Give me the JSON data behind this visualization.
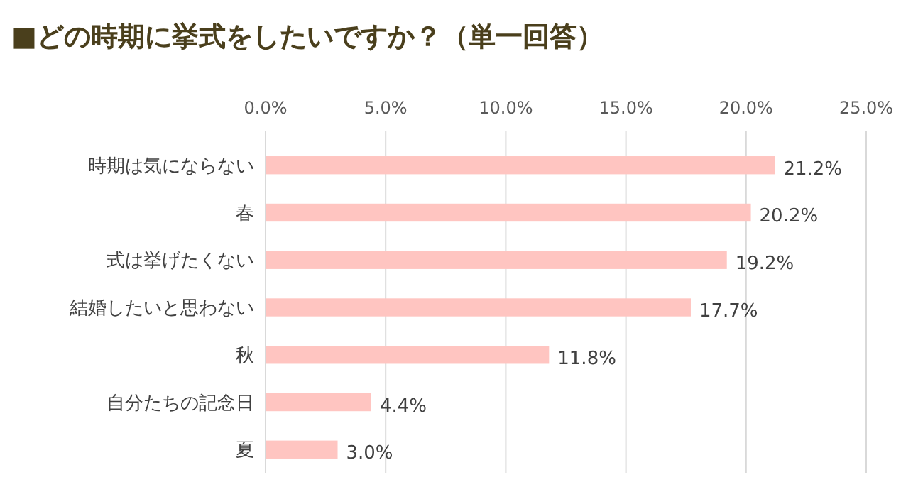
{
  "chart_data": {
    "type": "bar",
    "orientation": "horizontal",
    "title": "■どの時期に挙式をしたいですか？（単一回答）",
    "categories": [
      "時期は気にならない",
      "春",
      "式は挙げたくない",
      "結婚したいと思わない",
      "秋",
      "自分たちの記念日",
      "夏"
    ],
    "values": [
      21.2,
      20.2,
      19.2,
      17.7,
      11.8,
      4.4,
      3.0
    ],
    "value_labels": [
      "21.2%",
      "20.2%",
      "19.2%",
      "17.7%",
      "11.8%",
      "4.4%",
      "3.0%"
    ],
    "color": "#ffc5c1",
    "xlim": [
      0,
      25
    ],
    "xticks": [
      {
        "value": 0,
        "label": "0.0%"
      },
      {
        "value": 5,
        "label": "5.0%"
      },
      {
        "value": 10,
        "label": "10.0%"
      },
      {
        "value": 15,
        "label": "15.0%"
      },
      {
        "value": 20,
        "label": "20.0%"
      },
      {
        "value": 25,
        "label": "25.0%"
      }
    ],
    "grid": "x"
  }
}
